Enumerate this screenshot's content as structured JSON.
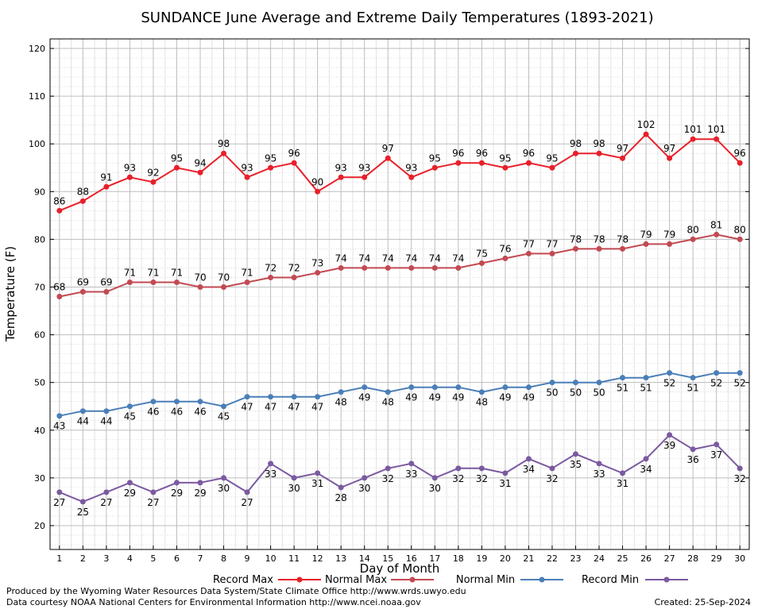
{
  "chart_data": {
    "type": "line",
    "title": "SUNDANCE June Average and Extreme Daily Temperatures (1893-2021)",
    "xlabel": "Day of Month",
    "ylabel": "Temperature (F)",
    "xlim": [
      0.6,
      30.4
    ],
    "ylim": [
      15,
      122
    ],
    "yticks": [
      20,
      30,
      40,
      50,
      60,
      70,
      80,
      90,
      100,
      110,
      120
    ],
    "grid": true,
    "legend_placement": "bottom",
    "x": [
      1,
      2,
      3,
      4,
      5,
      6,
      7,
      8,
      9,
      10,
      11,
      12,
      13,
      14,
      15,
      16,
      17,
      18,
      19,
      20,
      21,
      22,
      23,
      24,
      25,
      26,
      27,
      28,
      29,
      30
    ],
    "series": [
      {
        "name": "Record Max",
        "color": "#e8202a",
        "label_position": "above",
        "values": [
          86,
          88,
          91,
          93,
          92,
          95,
          94,
          98,
          93,
          95,
          96,
          90,
          93,
          93,
          97,
          93,
          95,
          96,
          96,
          95,
          96,
          95,
          98,
          98,
          97,
          102,
          97,
          101,
          101,
          96
        ]
      },
      {
        "name": "Normal Max",
        "color": "#c24a52",
        "label_position": "above",
        "values": [
          68,
          69,
          69,
          71,
          71,
          71,
          70,
          70,
          71,
          72,
          72,
          73,
          74,
          74,
          74,
          74,
          74,
          74,
          75,
          76,
          77,
          77,
          78,
          78,
          78,
          79,
          79,
          80,
          81,
          80
        ]
      },
      {
        "name": "Normal Min",
        "color": "#4a7fb8",
        "label_position": "below",
        "values": [
          43,
          44,
          44,
          45,
          46,
          46,
          46,
          45,
          47,
          47,
          47,
          47,
          48,
          49,
          48,
          49,
          49,
          49,
          48,
          49,
          49,
          50,
          50,
          50,
          51,
          51,
          52,
          51,
          52,
          52
        ]
      },
      {
        "name": "Record Min",
        "color": "#7b5aa0",
        "label_position": "below",
        "values": [
          27,
          25,
          27,
          29,
          27,
          29,
          29,
          30,
          27,
          33,
          30,
          31,
          28,
          30,
          32,
          33,
          30,
          32,
          32,
          31,
          34,
          32,
          35,
          33,
          31,
          34,
          39,
          36,
          37,
          32
        ]
      }
    ]
  },
  "footer": {
    "produced_by": "Produced by the Wyoming Water Resources Data System/State Climate Office http://www.wrds.uwyo.edu",
    "courtesy": "Data courtesy NOAA National Centers for Environmental Information http://www.ncei.noaa.gov",
    "created": "Created:  25-Sep-2024"
  }
}
